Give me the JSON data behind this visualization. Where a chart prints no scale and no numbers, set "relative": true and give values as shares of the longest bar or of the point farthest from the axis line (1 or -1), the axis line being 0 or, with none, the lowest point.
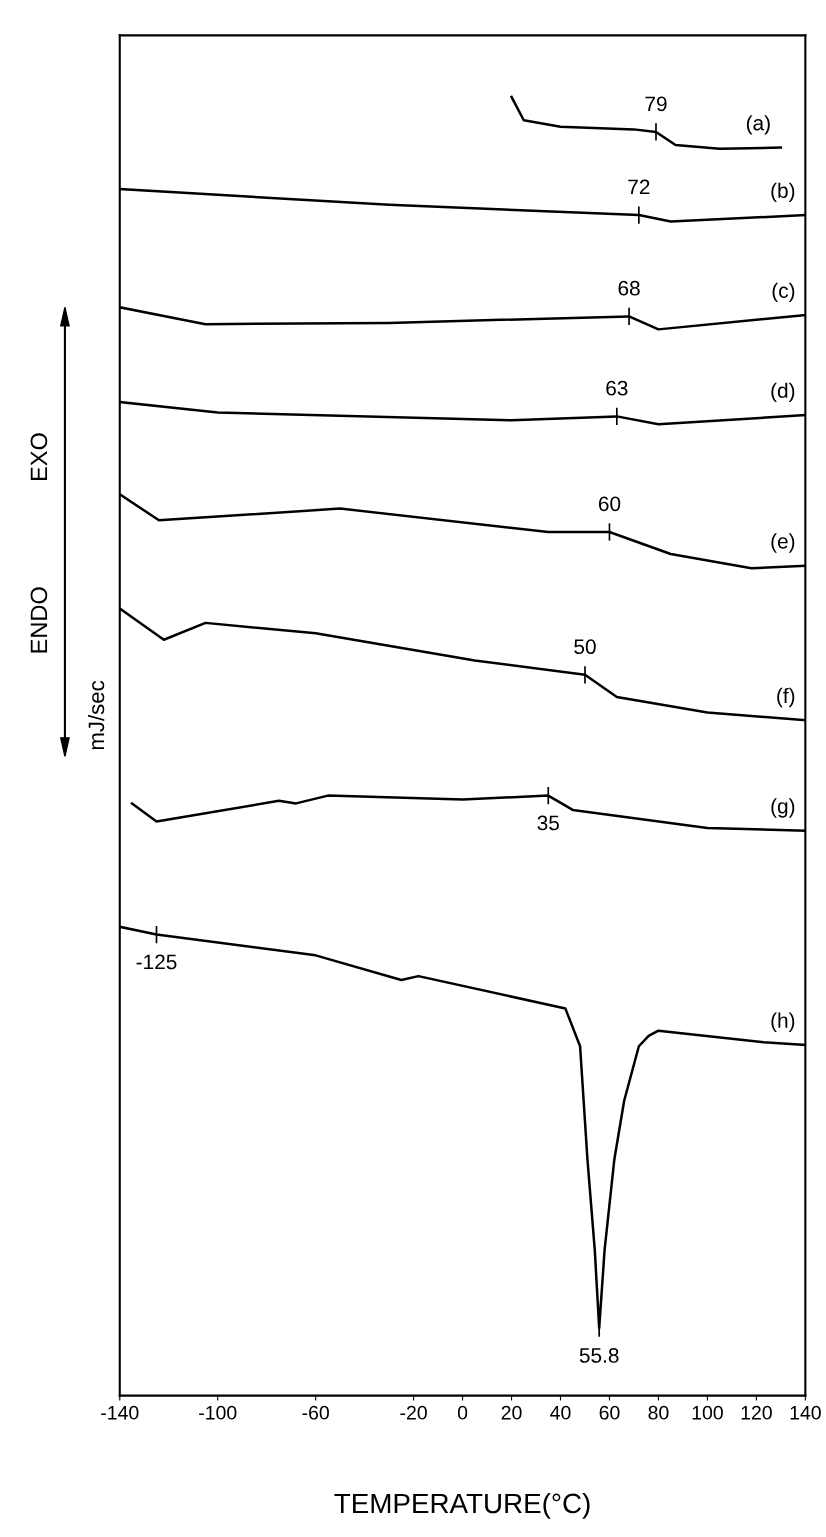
{
  "chart_data": {
    "type": "line",
    "relative": true,
    "xlabel": "TEMPERATURE(°C)",
    "ylabel": "mJ/sec",
    "xlim": [
      -140,
      140
    ],
    "xticks": [
      -140,
      -100,
      -60,
      -20,
      0,
      20,
      40,
      60,
      80,
      100,
      120,
      140
    ],
    "series": [
      {
        "name": "(a)",
        "color": "#000000",
        "x": [
          20,
          25,
          40,
          70,
          79,
          87,
          105,
          130
        ],
        "values": [
          1.0,
          0.982,
          0.977,
          0.975,
          0.973,
          0.963,
          0.96,
          0.961
        ]
      },
      {
        "name": "(b)",
        "color": "#000000",
        "x": [
          -140,
          -30,
          72,
          85,
          140
        ],
        "values": [
          0.929,
          0.917,
          0.909,
          0.904,
          0.909
        ]
      },
      {
        "name": "(c)",
        "color": "#000000",
        "x": [
          -140,
          -105,
          -30,
          68,
          80,
          140
        ],
        "values": [
          0.838,
          0.825,
          0.826,
          0.831,
          0.821,
          0.832
        ]
      },
      {
        "name": "(d)",
        "color": "#000000",
        "x": [
          -140,
          -100,
          20,
          63,
          80,
          140
        ],
        "values": [
          0.765,
          0.757,
          0.751,
          0.754,
          0.748,
          0.755
        ]
      },
      {
        "name": "(e)",
        "color": "#000000",
        "x": [
          -140,
          -124,
          -50,
          35,
          60,
          85,
          118,
          140
        ],
        "values": [
          0.694,
          0.674,
          0.683,
          0.665,
          0.665,
          0.648,
          0.637,
          0.639
        ]
      },
      {
        "name": "(f)",
        "color": "#000000",
        "x": [
          -140,
          -122,
          -105,
          -60,
          5,
          50,
          63,
          100,
          140
        ],
        "values": [
          0.606,
          0.582,
          0.595,
          0.587,
          0.566,
          0.555,
          0.538,
          0.526,
          0.52
        ]
      },
      {
        "name": "(g)",
        "color": "#000000",
        "x": [
          -135,
          -125,
          -75,
          -68,
          -55,
          0,
          35,
          45,
          100,
          140
        ],
        "values": [
          0.456,
          0.442,
          0.458,
          0.456,
          0.462,
          0.459,
          0.462,
          0.451,
          0.437,
          0.435
        ]
      },
      {
        "name": "(h)",
        "color": "#000000",
        "x": [
          -140,
          -125,
          -60,
          -25,
          -18,
          42,
          48,
          51,
          54,
          55.8,
          58,
          62,
          66,
          72,
          76,
          80,
          123,
          140
        ],
        "values": [
          0.361,
          0.355,
          0.339,
          0.32,
          0.323,
          0.298,
          0.269,
          0.182,
          0.112,
          0.052,
          0.112,
          0.182,
          0.227,
          0.269,
          0.277,
          0.281,
          0.272,
          0.27
        ]
      }
    ],
    "annotations": [
      {
        "text": "79",
        "x": 79,
        "y": 0.973
      },
      {
        "text": "72",
        "x": 72,
        "y": 0.909
      },
      {
        "text": "68",
        "x": 68,
        "y": 0.831
      },
      {
        "text": "63",
        "x": 63,
        "y": 0.754
      },
      {
        "text": "60",
        "x": 60,
        "y": 0.665
      },
      {
        "text": "50",
        "x": 50,
        "y": 0.555
      },
      {
        "text": "35",
        "x": 35,
        "y": 0.462
      },
      {
        "text": "-125",
        "x": -125,
        "y": 0.355
      },
      {
        "text": "55.8",
        "x": 55.8,
        "y": 0.052
      },
      "EXO",
      "ENDO"
    ],
    "legend": false,
    "grid": false
  }
}
